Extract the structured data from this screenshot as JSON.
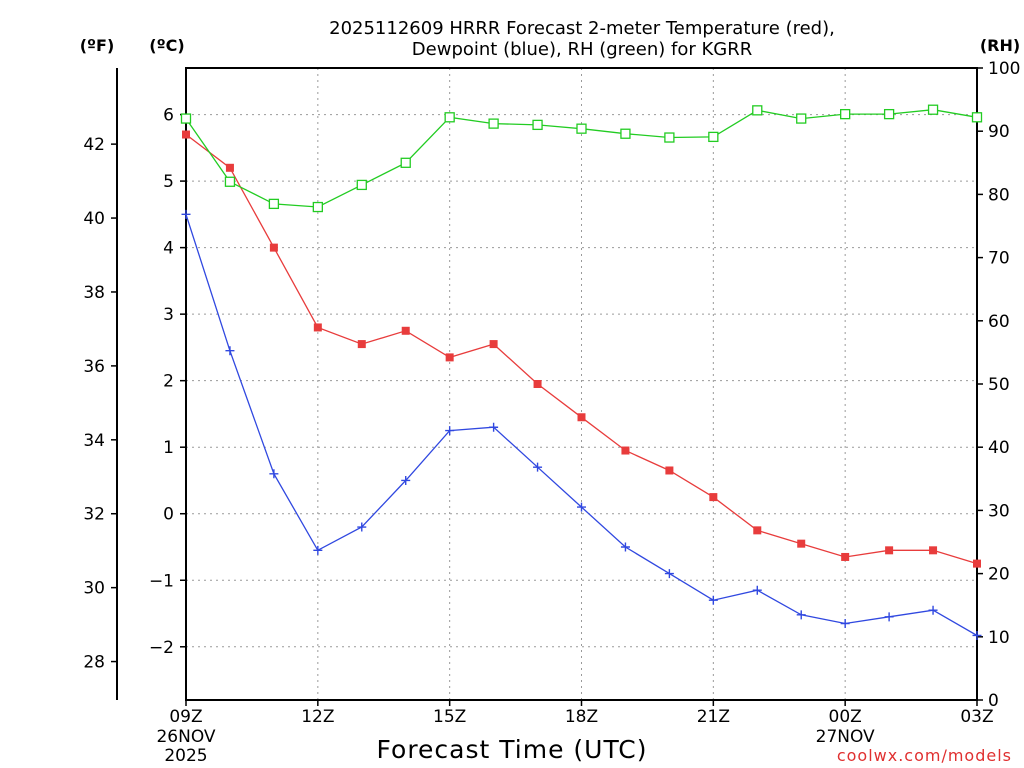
{
  "chart_data": {
    "type": "line",
    "title": [
      "2025112609 HRRR Forecast 2-meter Temperature (red),",
      "Dewpoint (blue), RH (green) for KGRR"
    ],
    "xlabel": "Forecast Time (UTC)",
    "credit": "coolwx.com/models",
    "x_hours": [
      0,
      1,
      2,
      3,
      4,
      5,
      6,
      7,
      8,
      9,
      10,
      11,
      12,
      13,
      14,
      15,
      16,
      17,
      18
    ],
    "x_ticks": [
      {
        "hour": 0,
        "label": "09Z",
        "date1": "26NOV",
        "date2": "2025"
      },
      {
        "hour": 3,
        "label": "12Z",
        "date1": "",
        "date2": ""
      },
      {
        "hour": 6,
        "label": "15Z",
        "date1": "",
        "date2": ""
      },
      {
        "hour": 9,
        "label": "18Z",
        "date1": "",
        "date2": ""
      },
      {
        "hour": 12,
        "label": "21Z",
        "date1": "",
        "date2": ""
      },
      {
        "hour": 15,
        "label": "00Z",
        "date1": "27NOV",
        "date2": ""
      },
      {
        "hour": 18,
        "label": "03Z",
        "date1": "",
        "date2": ""
      }
    ],
    "units": {
      "fahrenheit": "(ºF)",
      "celsius": "(ºC)",
      "rh": "(RH)"
    },
    "celsius_axis": {
      "range": [
        -2.8,
        6.7
      ],
      "ticks": [
        -2,
        -1,
        0,
        1,
        2,
        3,
        4,
        5,
        6
      ],
      "labels": [
        "−2",
        "−1",
        "0",
        "1",
        "2",
        "3",
        "4",
        "5",
        "6"
      ]
    },
    "fahrenheit_axis": {
      "ticks": [
        28,
        30,
        32,
        34,
        36,
        38,
        40,
        42
      ],
      "labels": [
        "28",
        "30",
        "32",
        "34",
        "36",
        "38",
        "40",
        "42"
      ]
    },
    "rh_axis": {
      "range": [
        0,
        100
      ],
      "ticks": [
        0,
        10,
        20,
        30,
        40,
        50,
        60,
        70,
        80,
        90,
        100
      ],
      "labels": [
        "0",
        "10",
        "20",
        "30",
        "40",
        "50",
        "60",
        "70",
        "80",
        "90",
        "100"
      ]
    },
    "series": [
      {
        "name": "2-meter Temperature",
        "unit": "C",
        "color": "#e83c3c",
        "marker": "filled-square",
        "values": [
          5.7,
          5.2,
          4.0,
          2.8,
          2.55,
          2.75,
          2.35,
          2.55,
          1.95,
          1.45,
          0.95,
          0.65,
          0.25,
          -0.25,
          -0.45,
          -0.65,
          -0.55,
          -0.55,
          -0.75
        ]
      },
      {
        "name": "Dewpoint",
        "unit": "C",
        "color": "#3048e0",
        "marker": "plus",
        "values": [
          4.5,
          2.45,
          0.6,
          -0.55,
          -0.2,
          0.5,
          1.25,
          1.3,
          0.7,
          0.1,
          -0.5,
          -0.9,
          -1.3,
          -1.15,
          -1.52,
          -1.65,
          -1.55,
          -1.45,
          -1.83
        ]
      },
      {
        "name": "RH",
        "unit": "%",
        "color": "#22cc22",
        "marker": "open-square",
        "values": [
          92,
          82,
          78.5,
          78,
          81.5,
          85,
          92.2,
          91.2,
          91,
          90.4,
          89.6,
          89,
          89.1,
          93.3,
          92,
          92.7,
          92.7,
          93.4,
          92.2
        ]
      }
    ],
    "grid": true
  }
}
